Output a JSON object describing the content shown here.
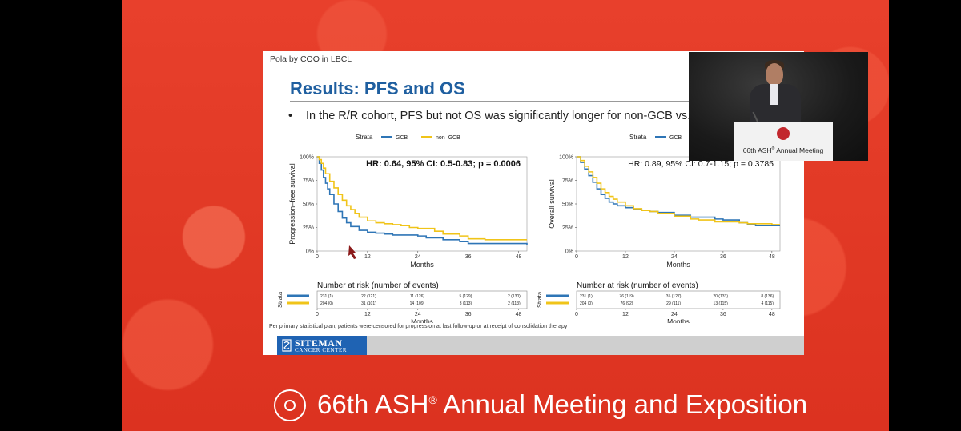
{
  "slide": {
    "header": "Pola by COO in LBCL",
    "title": "Results: PFS and OS",
    "bullet_symbol": "•",
    "bullet": "In the R/R cohort, PFS but not OS was significantly longer for non-GCB vs. GCB COO",
    "footnote": "Per primary statistical plan, patients were censored for progression at last follow-up or at receipt of consolidation therapy",
    "logo_line1": "SITEMAN",
    "logo_line2": "CANCER CENTER"
  },
  "colors": {
    "gcb": "#2e75b6",
    "non_gcb": "#f0c419",
    "title": "#1f5fa0"
  },
  "chart_data": [
    {
      "type": "line",
      "name": "PFS",
      "legend_title": "Strata",
      "legend": [
        "GCB",
        "non–GCB"
      ],
      "hr_text": "HR: 0.64, 95% CI: 0.5-0.83; p = 0.0006",
      "xlabel": "Months",
      "ylabel": "Progression–free survival",
      "xticks": [
        0,
        12,
        24,
        36,
        48
      ],
      "yticks": [
        "0%",
        "25%",
        "50%",
        "75%",
        "100%"
      ],
      "xlim": [
        0,
        50
      ],
      "ylim": [
        0,
        100
      ],
      "series": [
        {
          "name": "GCB",
          "x": [
            0,
            0.5,
            1,
            1.5,
            2,
            2.5,
            3,
            4,
            5,
            6,
            7,
            8,
            10,
            12,
            14,
            16,
            18,
            20,
            24,
            26,
            30,
            34,
            36,
            40,
            44,
            48,
            50
          ],
          "y": [
            100,
            93,
            86,
            78,
            72,
            66,
            60,
            50,
            42,
            35,
            30,
            26,
            22,
            20,
            19,
            18,
            17,
            17,
            16,
            14,
            12,
            10,
            8,
            8,
            8,
            8,
            6
          ]
        },
        {
          "name": "non–GCB",
          "x": [
            0,
            0.5,
            1,
            1.5,
            2,
            3,
            4,
            5,
            6,
            7,
            8,
            9,
            10,
            12,
            14,
            16,
            18,
            20,
            22,
            24,
            28,
            30,
            34,
            36,
            40,
            44,
            48,
            50
          ],
          "y": [
            100,
            97,
            93,
            88,
            82,
            74,
            67,
            60,
            54,
            48,
            44,
            40,
            36,
            32,
            30,
            29,
            28,
            27,
            25,
            24,
            21,
            18,
            16,
            13,
            12,
            12,
            12,
            12
          ]
        }
      ],
      "risk_table": {
        "title": "Number at risk (number of events)",
        "strata_label": "Strata",
        "xlabel": "Months",
        "rows": [
          [
            "231 (1)",
            "22 (121)",
            "11 (126)",
            "5 (129)",
            "2 (130)"
          ],
          [
            "204 (0)",
            "31 (101)",
            "14 (109)",
            "3 (113)",
            "2 (113)"
          ]
        ]
      }
    },
    {
      "type": "line",
      "name": "OS",
      "legend_title": "Strata",
      "legend": [
        "GCB",
        "non–GCB"
      ],
      "hr_text": "HR: 0.89, 95% CI: 0.7-1.15; p = 0.3785",
      "xlabel": "Months",
      "ylabel": "Overall survival",
      "xticks": [
        0,
        12,
        24,
        36,
        48
      ],
      "yticks": [
        "0%",
        "25%",
        "50%",
        "75%",
        "100%"
      ],
      "xlim": [
        0,
        50
      ],
      "ylim": [
        0,
        100
      ],
      "series": [
        {
          "name": "GCB",
          "x": [
            0,
            1,
            2,
            3,
            4,
            5,
            6,
            7,
            8,
            9,
            10,
            12,
            14,
            16,
            18,
            20,
            24,
            28,
            30,
            34,
            36,
            40,
            42,
            44,
            48,
            50
          ],
          "y": [
            100,
            94,
            87,
            80,
            73,
            66,
            60,
            56,
            52,
            50,
            48,
            46,
            44,
            43,
            42,
            41,
            38,
            36,
            36,
            34,
            33,
            30,
            28,
            27,
            27,
            27
          ]
        },
        {
          "name": "non–GCB",
          "x": [
            0,
            1,
            2,
            3,
            4,
            5,
            6,
            7,
            8,
            9,
            10,
            12,
            14,
            16,
            18,
            20,
            24,
            28,
            30,
            34,
            36,
            40,
            42,
            44,
            48,
            50
          ],
          "y": [
            100,
            96,
            90,
            84,
            78,
            72,
            66,
            62,
            58,
            55,
            52,
            48,
            45,
            43,
            42,
            40,
            37,
            34,
            33,
            31,
            31,
            30,
            29,
            29,
            28,
            28
          ]
        }
      ],
      "risk_table": {
        "title": "Number at risk (number of events)",
        "strata_label": "Strata",
        "xlabel": "Months",
        "rows": [
          [
            "231 (1)",
            "76 (119)",
            "35 (127)",
            "20 (133)",
            "8 (136)"
          ],
          [
            "204 (0)",
            "76 (92)",
            "29 (111)",
            "13 (115)",
            "4 (115)"
          ]
        ]
      }
    }
  ],
  "speaker_video": {
    "podium_text": "66th ASH",
    "podium_sup": "®",
    "podium_text_rest": " Annual Meeting"
  },
  "banner": {
    "prefix": "66th ASH",
    "sup": "®",
    "suffix": " Annual Meeting and Exposition"
  }
}
